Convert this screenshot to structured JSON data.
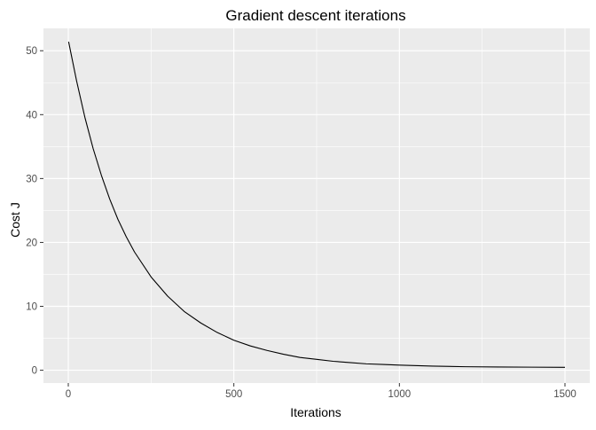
{
  "chart_data": {
    "type": "line",
    "title": "Gradient descent iterations",
    "xlabel": "Iterations",
    "ylabel": "Cost J",
    "xlim": [
      -75,
      1575
    ],
    "ylim": [
      -2,
      53.5
    ],
    "x_ticks": [
      0,
      500,
      1000,
      1500
    ],
    "y_ticks": [
      0,
      10,
      20,
      30,
      40,
      50
    ],
    "grid": true,
    "panel_background": "#EBEBEB",
    "gridline_color": "#FFFFFF",
    "line_color": "#000000",
    "series": [
      {
        "x": [
          1,
          25,
          50,
          75,
          100,
          125,
          150,
          175,
          200,
          250,
          300,
          350,
          400,
          450,
          500,
          550,
          600,
          650,
          700,
          750,
          800,
          850,
          900,
          950,
          1000,
          1100,
          1200,
          1300,
          1400,
          1500
        ],
        "values": [
          51.4,
          45.3,
          39.6,
          34.7,
          30.5,
          26.8,
          23.6,
          20.9,
          18.5,
          14.6,
          11.6,
          9.2,
          7.4,
          5.9,
          4.7,
          3.8,
          3.1,
          2.5,
          2.0,
          1.7,
          1.4,
          1.2,
          1.0,
          0.9,
          0.8,
          0.65,
          0.55,
          0.5,
          0.48,
          0.45
        ]
      }
    ]
  }
}
